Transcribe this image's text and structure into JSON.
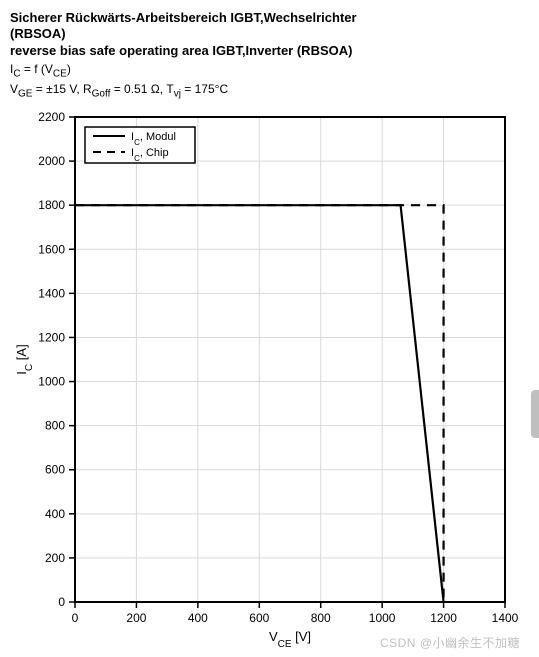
{
  "header": {
    "title_de_1": "Sicherer Rückwärts-Arbeitsbereich IGBT,Wechselrichter",
    "title_de_2": "(RBSOA)",
    "title_en": "reverse bias safe operating area IGBT,Inverter (RBSOA)",
    "formula": "I_C = f (V_CE)",
    "conditions": "V_GE = ±15 V, R_Goff = 0.51 Ω, T_vj = 175°C"
  },
  "chart": {
    "type": "line",
    "background_color": "#ffffff",
    "frame_color": "#000000",
    "frame_width": 2,
    "grid_color": "#d9d9d9",
    "grid_width": 1,
    "x": {
      "label": "V_CE  [V]",
      "min": 0,
      "max": 1400,
      "tick_step": 200,
      "ticks": [
        0,
        200,
        400,
        600,
        800,
        1000,
        1200,
        1400
      ]
    },
    "y": {
      "label": "I_C [A]",
      "min": 0,
      "max": 2200,
      "tick_step": 200,
      "ticks": [
        0,
        200,
        400,
        600,
        800,
        1000,
        1200,
        1400,
        1600,
        1800,
        2000,
        2200
      ]
    },
    "tick_font_size": 12,
    "label_font_size": 13,
    "legend": {
      "position": "top-left",
      "border_color": "#000000",
      "background": "#ffffff",
      "font_size": 11,
      "items": [
        {
          "key": "modul",
          "label": "I_C, Modul",
          "dash": "solid",
          "color": "#000000"
        },
        {
          "key": "chip",
          "label": "I_C, Chip",
          "dash": "dash",
          "color": "#000000"
        }
      ]
    },
    "series": {
      "modul": {
        "color": "#000000",
        "width": 2.2,
        "dash": "solid",
        "points": [
          [
            0,
            1800
          ],
          [
            1060,
            1800
          ],
          [
            1200,
            0
          ]
        ]
      },
      "chip": {
        "color": "#000000",
        "width": 2.2,
        "dash": "dash",
        "points": [
          [
            0,
            1800
          ],
          [
            1200,
            1800
          ],
          [
            1200,
            0
          ]
        ]
      }
    }
  },
  "watermark": "CSDN @小幽余生不加糖"
}
